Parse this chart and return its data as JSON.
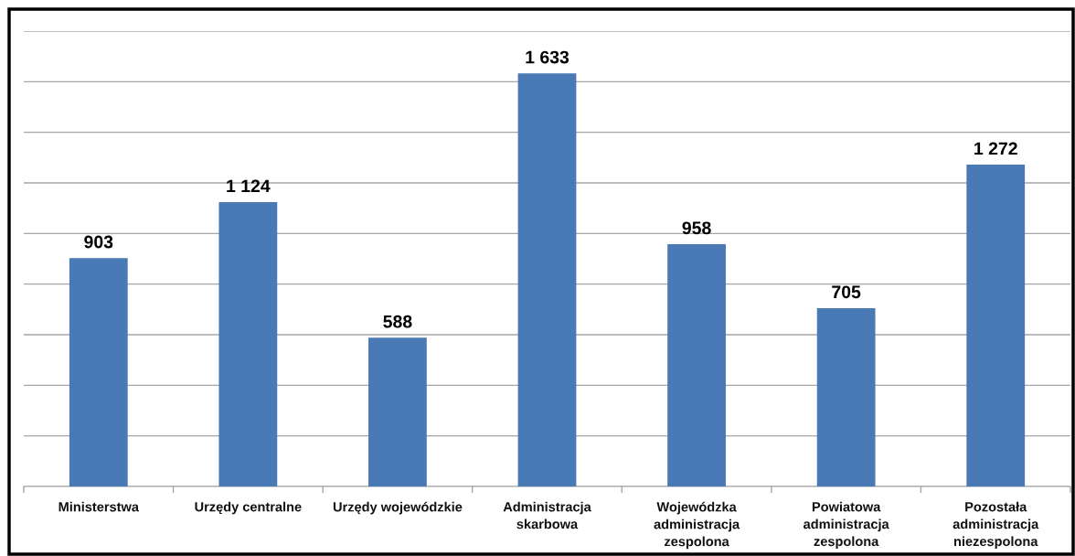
{
  "chart_data": {
    "type": "bar",
    "categories": [
      "Ministerstwa",
      "Urzędy centralne",
      "Urzędy wojewódzkie",
      "Administracja\nskarbowa",
      "Wojewódzka\nadministracja\nzespolona",
      "Powiatowa\nadministracja\nzespolona",
      "Pozostała\nadministracja\nniezespolona"
    ],
    "values": [
      903,
      1124,
      588,
      1633,
      958,
      705,
      1272
    ],
    "color": "#4a7ab5",
    "value_labels": [
      "903",
      "1 124",
      "588",
      "1 633",
      "958",
      "705",
      "1 272"
    ],
    "ylim": [
      0,
      1800
    ],
    "yticks": [
      {
        "value": 0,
        "label": null
      },
      {
        "value": 200,
        "label": null
      },
      {
        "value": 400,
        "label": null
      },
      {
        "value": 600,
        "label": null
      },
      {
        "value": 800,
        "label": null
      },
      {
        "value": 1000,
        "label": null
      },
      {
        "value": 1200,
        "label": null
      },
      {
        "value": 1400,
        "label": null
      },
      {
        "value": 1600,
        "label": null
      },
      {
        "value": 1800,
        "label": null
      }
    ],
    "grid": "y",
    "tick_labels": "x"
  }
}
